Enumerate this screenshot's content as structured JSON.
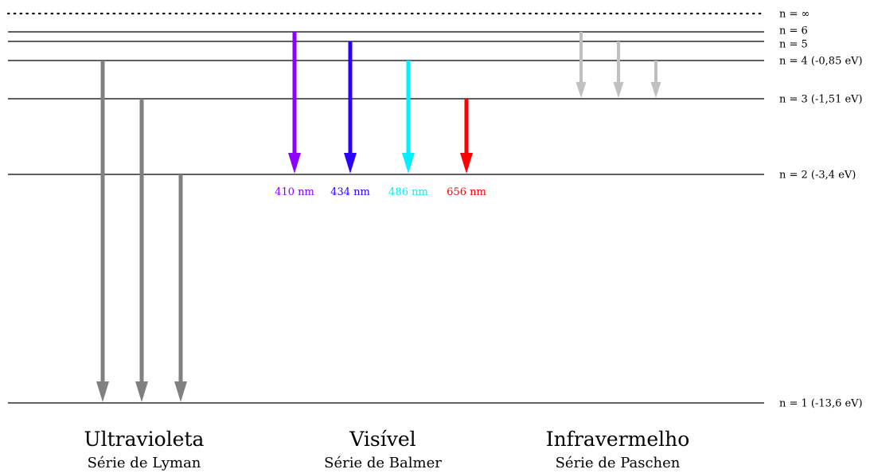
{
  "levels": [
    {
      "n": "∞",
      "label": "n = ∞",
      "energy_eV": 0,
      "dotted": true
    },
    {
      "n": "6",
      "label": "n = 6",
      "energy_eV": -0.38
    },
    {
      "n": "5",
      "label": "n = 5",
      "energy_eV": -0.54
    },
    {
      "n": "4",
      "label": "n = 4 (-0,85 eV)",
      "energy_eV": -0.85
    },
    {
      "n": "3",
      "label": "n = 3 (-1,51 eV)",
      "energy_eV": -1.51
    },
    {
      "n": "2",
      "label": "n = 2 (-3,4 eV)",
      "energy_eV": -3.4
    },
    {
      "n": "1",
      "label": "n = 1 (-13,6 eV)",
      "energy_eV": -13.6
    }
  ],
  "series": [
    {
      "title": "Ultravioleta",
      "subtitle": "Série de Lyman",
      "transitions": [
        {
          "from": "4",
          "to": "1",
          "color": "#808080"
        },
        {
          "from": "3",
          "to": "1",
          "color": "#808080"
        },
        {
          "from": "2",
          "to": "1",
          "color": "#808080"
        }
      ]
    },
    {
      "title": "Visível",
      "subtitle": "Série de Balmer",
      "transitions": [
        {
          "from": "6",
          "to": "2",
          "color": "#8b00ff",
          "wavelength": "410 nm"
        },
        {
          "from": "5",
          "to": "2",
          "color": "#2b00ff",
          "wavelength": "434 nm"
        },
        {
          "from": "4",
          "to": "2",
          "color": "#00f0ff",
          "wavelength": "486 nm"
        },
        {
          "from": "3",
          "to": "2",
          "color": "#ff0000",
          "wavelength": "656 nm"
        }
      ]
    },
    {
      "title": "Infravermelho",
      "subtitle": "Série de Paschen",
      "transitions": [
        {
          "from": "6",
          "to": "3",
          "color": "#c0c0c0"
        },
        {
          "from": "5",
          "to": "3",
          "color": "#c0c0c0"
        },
        {
          "from": "4",
          "to": "3",
          "color": "#c0c0c0"
        }
      ]
    }
  ]
}
